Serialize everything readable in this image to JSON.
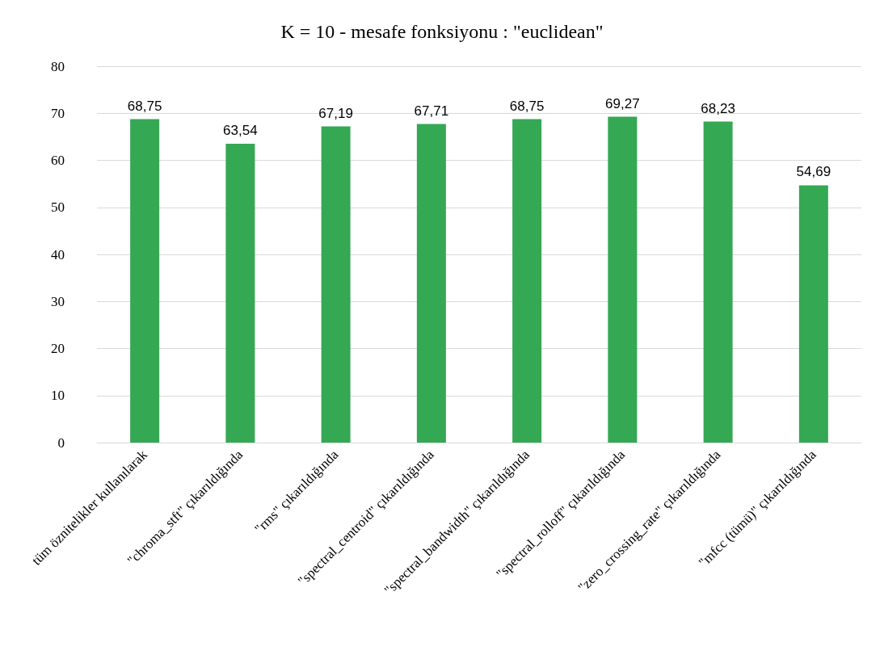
{
  "chart_data": {
    "type": "bar",
    "title": "K = 10 - mesafe fonksiyonu : \"euclidean\"",
    "categories": [
      "tüm öznitelikler kullanılarak",
      "\"chroma_stft\" çıkarıldığında",
      "\"rms\" çıkarıldığında",
      "\"spectral_centroid\" çıkarıldığında",
      "\"spectral_bandwidth\" çıkarıldığında",
      "\"spectral_rolloff\" çıkarıldığında",
      "\"zero_crossing_rate\" çıkarıldığında",
      "\"mfcc (tümü)\" çıkarıldığında"
    ],
    "values": [
      68.75,
      63.54,
      67.19,
      67.71,
      68.75,
      69.27,
      68.23,
      54.69
    ],
    "value_labels": [
      "68,75",
      "63,54",
      "67,19",
      "67,71",
      "68,75",
      "69,27",
      "68,23",
      "54,69"
    ],
    "color": "#34a853",
    "ylim": [
      0,
      80
    ],
    "yticks": [
      0,
      10,
      20,
      30,
      40,
      50,
      60,
      70,
      80
    ],
    "grid": "y"
  }
}
